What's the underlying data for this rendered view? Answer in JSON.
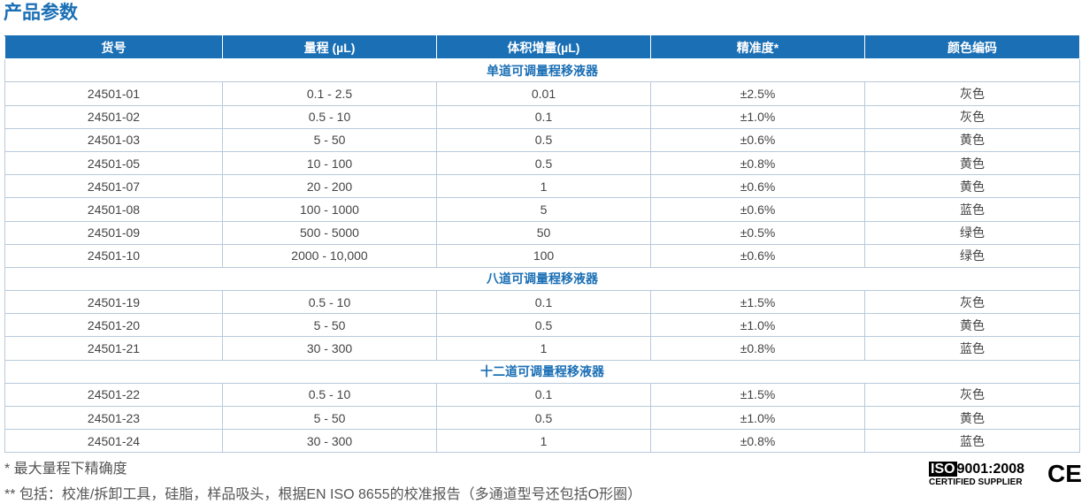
{
  "header": {
    "title": "产品参数"
  },
  "table": {
    "columns": [
      "货号",
      "量程 (µL)",
      "体积增量(µL)",
      "精准度*",
      "颜色编码"
    ],
    "sections": [
      {
        "title": "单道可调量程移液器",
        "rows": [
          [
            "24501-01",
            "0.1 - 2.5",
            "0.01",
            "±2.5%",
            "灰色"
          ],
          [
            "24501-02",
            "0.5 - 10",
            "0.1",
            "±1.0%",
            "灰色"
          ],
          [
            "24501-03",
            "5 - 50",
            "0.5",
            "±0.6%",
            "黄色"
          ],
          [
            "24501-05",
            "10 - 100",
            "0.5",
            "±0.8%",
            "黄色"
          ],
          [
            "24501-07",
            "20 - 200",
            "1",
            "±0.6%",
            "黄色"
          ],
          [
            "24501-08",
            "100 - 1000",
            "5",
            "±0.6%",
            "蓝色"
          ],
          [
            "24501-09",
            "500 - 5000",
            "50",
            "±0.5%",
            "绿色"
          ],
          [
            "24501-10",
            "2000 - 10,000",
            "100",
            "±0.6%",
            "绿色"
          ]
        ]
      },
      {
        "title": "八道可调量程移液器",
        "rows": [
          [
            "24501-19",
            "0.5 - 10",
            "0.1",
            "±1.5%",
            "灰色"
          ],
          [
            "24501-20",
            "5 - 50",
            "0.5",
            "±1.0%",
            "黄色"
          ],
          [
            "24501-21",
            "30 - 300",
            "1",
            "±0.8%",
            "蓝色"
          ]
        ]
      },
      {
        "title": "十二道可调量程移液器",
        "rows": [
          [
            "24501-22",
            "0.5 - 10",
            "0.1",
            "±1.5%",
            "灰色"
          ],
          [
            "24501-23",
            "5 - 50",
            "0.5",
            "±1.0%",
            "黄色"
          ],
          [
            "24501-24",
            "30 - 300",
            "1",
            "±0.8%",
            "蓝色"
          ]
        ]
      }
    ]
  },
  "footnotes": [
    "* 最大量程下精确度",
    "** 包括：校准/拆卸工具，硅脂，样品吸头，根据EN ISO 8655的校准报告（多通道型号还包括O形圈）"
  ],
  "certification": {
    "iso_mark": "ISO",
    "standard": "9001:2008",
    "supplier": "CERTIFIED SUPPLIER",
    "ce": "CE"
  }
}
